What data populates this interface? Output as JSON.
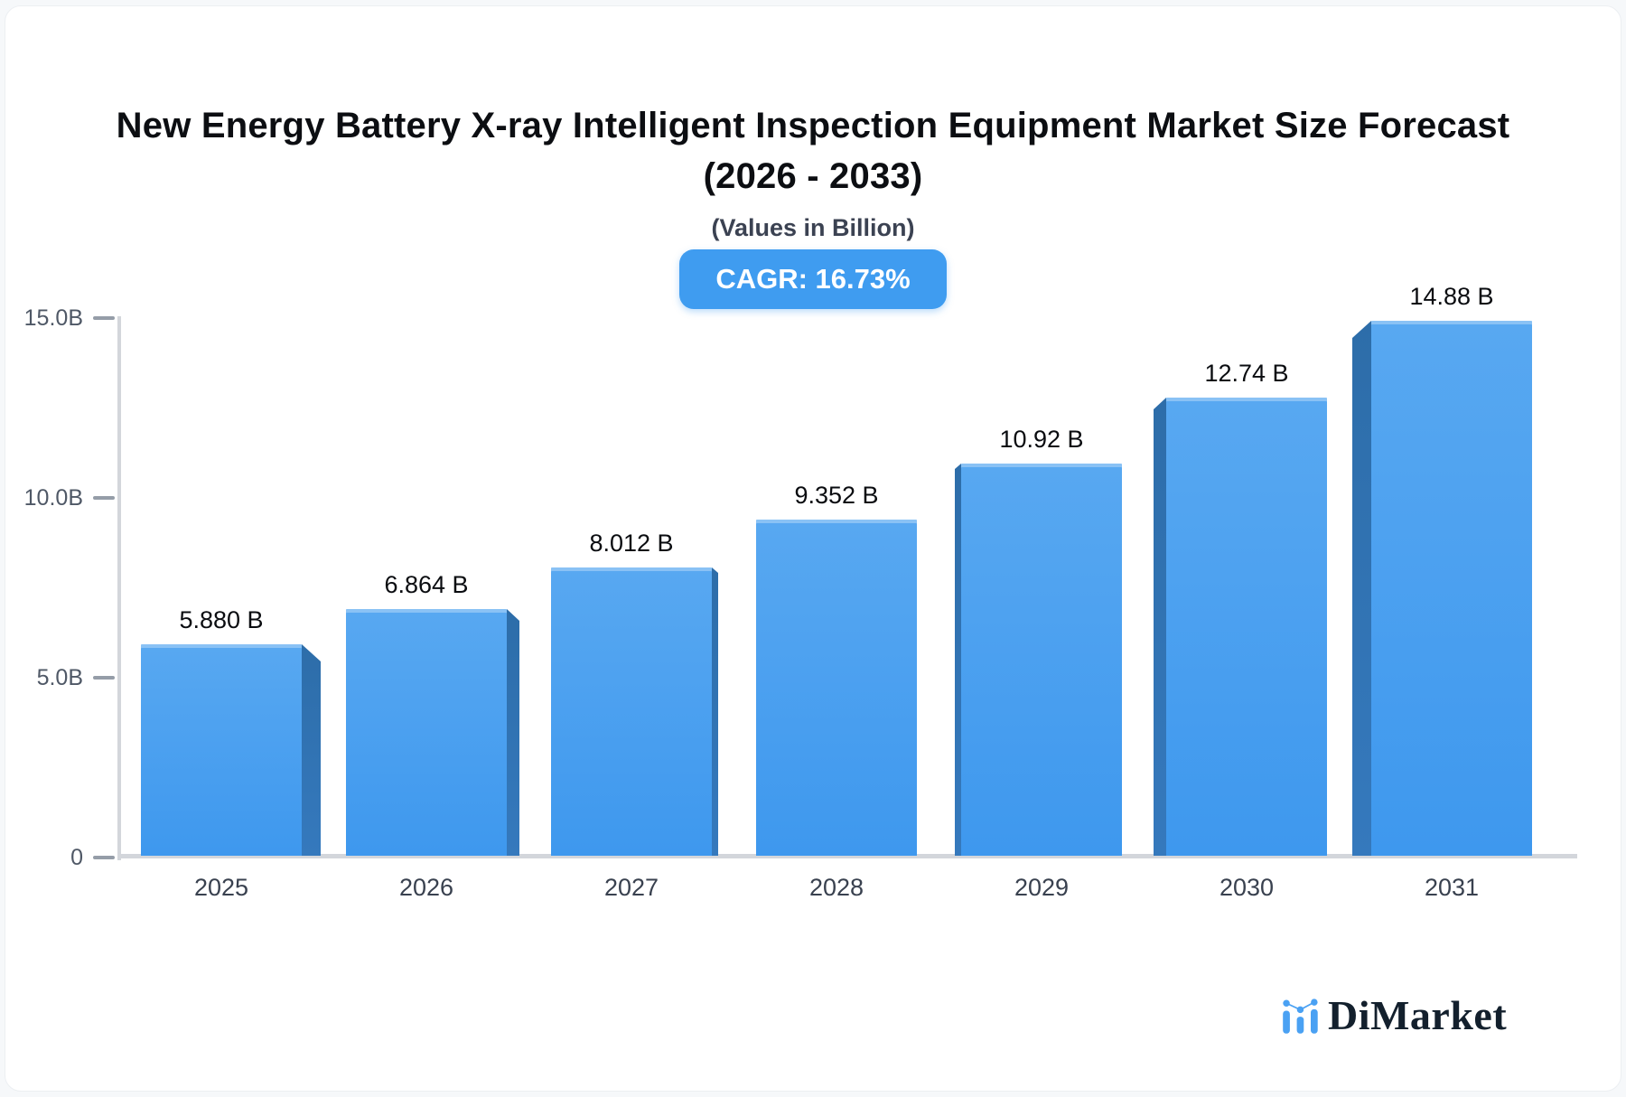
{
  "header": {
    "title_line1": "New Energy Battery X-ray Intelligent Inspection Equipment Market Size Forecast",
    "title_line2": "(2026 - 2033)",
    "subtitle": "(Values in Billion)",
    "cagr_badge": "CAGR: 16.73%"
  },
  "chart_data": {
    "type": "bar",
    "title": "New Energy Battery X-ray Intelligent Inspection Equipment Market Size Forecast (2026 - 2033)",
    "subtitle": "(Values in Billion)",
    "cagr_percent": 16.73,
    "categories": [
      "2025",
      "2026",
      "2027",
      "2028",
      "2029",
      "2030",
      "2031"
    ],
    "values": [
      5.88,
      6.864,
      8.012,
      9.352,
      10.92,
      12.74,
      14.88
    ],
    "bar_labels": [
      "5.880 B",
      "6.864 B",
      "8.012 B",
      "9.352 B",
      "10.92 B",
      "12.74 B",
      "14.88 B"
    ],
    "unit": "Billion",
    "ylim": [
      0,
      15
    ],
    "yticks": [
      {
        "label": "15.0B",
        "value": 15
      },
      {
        "label": "10.0B",
        "value": 10
      },
      {
        "label": "5.0B",
        "value": 5
      },
      {
        "label": "0",
        "value": 0
      }
    ],
    "grid": false,
    "legend": false
  },
  "colors": {
    "bar_top": "#58a8f1",
    "bar_bottom": "#3e98ee",
    "bar_side_top": "#2d6da9",
    "bar_side_bottom": "#3579bd",
    "badge": "#3f9cf0",
    "axis": "#d3d6db",
    "logo_blue": "#4aa1f3"
  },
  "footer": {
    "brand": "DiMarket"
  }
}
